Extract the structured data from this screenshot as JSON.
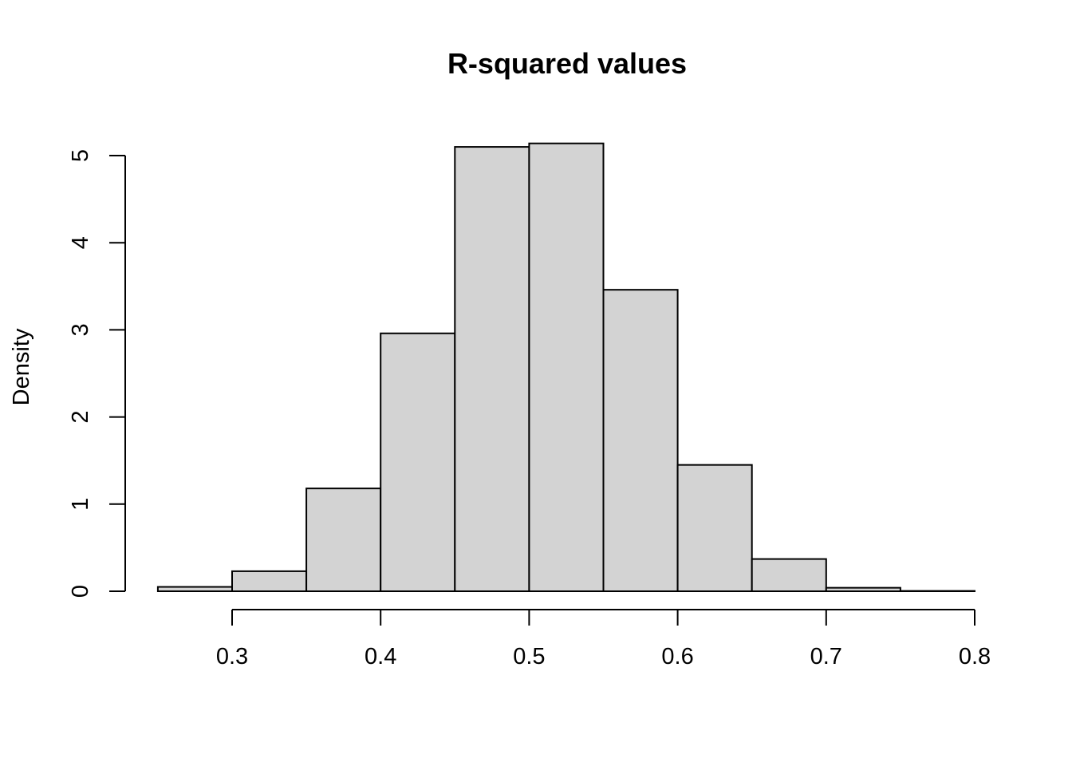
{
  "chart_data": {
    "type": "bar",
    "subtype": "histogram",
    "title": "R-squared values",
    "xlabel": "",
    "ylabel": "Density",
    "bins": [
      {
        "from": 0.25,
        "to": 0.3,
        "density": 0.05
      },
      {
        "from": 0.3,
        "to": 0.35,
        "density": 0.23
      },
      {
        "from": 0.35,
        "to": 0.4,
        "density": 1.18
      },
      {
        "from": 0.4,
        "to": 0.45,
        "density": 2.96
      },
      {
        "from": 0.45,
        "to": 0.5,
        "density": 5.1
      },
      {
        "from": 0.5,
        "to": 0.55,
        "density": 5.14
      },
      {
        "from": 0.55,
        "to": 0.6,
        "density": 3.46
      },
      {
        "from": 0.6,
        "to": 0.65,
        "density": 1.45
      },
      {
        "from": 0.65,
        "to": 0.7,
        "density": 0.37
      },
      {
        "from": 0.7,
        "to": 0.75,
        "density": 0.04
      },
      {
        "from": 0.75,
        "to": 0.8,
        "density": 0.004
      }
    ],
    "xlim": [
      0.25,
      0.8
    ],
    "ylim": [
      0,
      5.14
    ],
    "x_ticks": [
      0.3,
      0.4,
      0.5,
      0.6,
      0.7,
      0.8
    ],
    "x_tick_labels": [
      "0.3",
      "0.4",
      "0.5",
      "0.6",
      "0.7",
      "0.8"
    ],
    "y_ticks": [
      0,
      1,
      2,
      3,
      4,
      5
    ],
    "y_tick_labels": [
      "0",
      "1",
      "2",
      "3",
      "4",
      "5"
    ],
    "grid": false,
    "bar_color": "#d3d3d3",
    "edge_color": "#000000"
  }
}
